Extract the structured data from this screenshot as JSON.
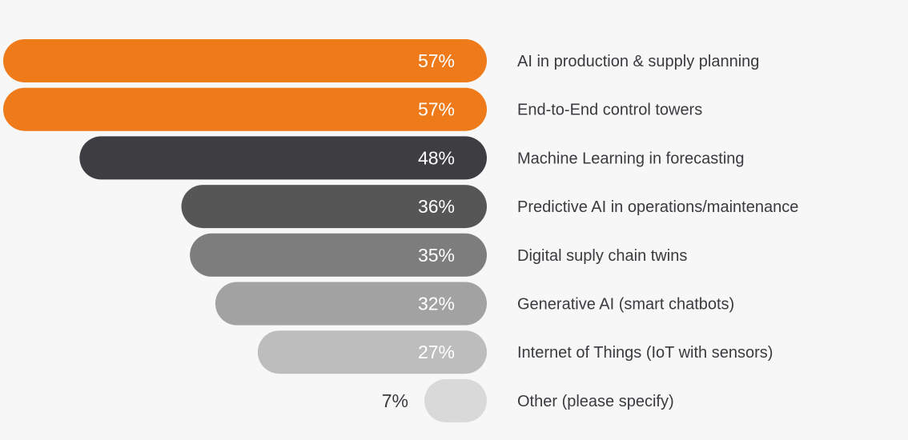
{
  "chart_data": {
    "type": "bar",
    "orientation": "horizontal",
    "categories": [
      "AI in production & supply planning",
      "End-to-End control towers",
      "Machine Learning in forecasting",
      "Predictive AI in operations/maintenance",
      "Digital suply chain twins",
      "Generative AI (smart chatbots)",
      "Internet of Things (IoT with sensors)",
      "Other (please specify)"
    ],
    "values": [
      57,
      57,
      48,
      36,
      35,
      32,
      27,
      7
    ],
    "value_labels": [
      "57%",
      "57%",
      "48%",
      "36%",
      "35%",
      "32%",
      "27%",
      "7%"
    ],
    "bar_colors": [
      "#ef7a19",
      "#ef7a19",
      "#3d3d42",
      "#565656",
      "#7d7d7d",
      "#a2a2a2",
      "#bdbdbd",
      "#d9d9d9"
    ],
    "label_colors": [
      "#ffffff",
      "#ffffff",
      "#ffffff",
      "#ffffff",
      "#ffffff",
      "#ffffff",
      "#ffffff",
      "#3a3a3f"
    ],
    "title": "",
    "xlabel": "",
    "ylabel": "",
    "xlim": [
      0,
      57
    ]
  }
}
